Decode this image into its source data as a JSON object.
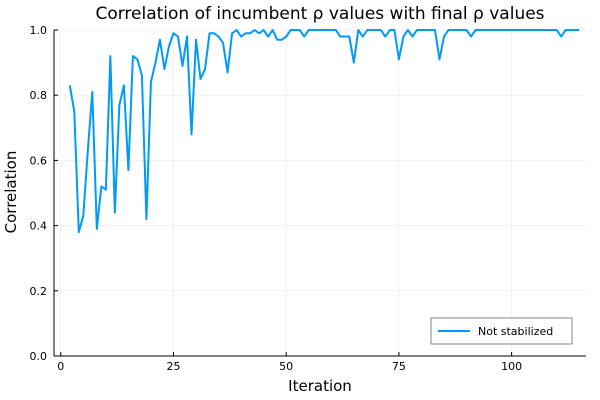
{
  "chart_data": {
    "type": "line",
    "title": "Correlation of incumbent ρ values with final ρ values",
    "xlabel": "Iteration",
    "ylabel": "Correlation",
    "xlim": [
      -1.5,
      116.5
    ],
    "ylim": [
      0,
      1.0
    ],
    "xticks": [
      0,
      25,
      50,
      75,
      100
    ],
    "xtick_labels": [
      "0",
      "25",
      "50",
      "75",
      "100"
    ],
    "yticks": [
      0.0,
      0.2,
      0.4,
      0.6,
      0.8,
      1.0
    ],
    "ytick_labels": [
      "0.0",
      "0.2",
      "0.4",
      "0.6",
      "0.8",
      "1.0"
    ],
    "grid": true,
    "legend_position": "bottom-right",
    "series_color": "#009af9",
    "series": [
      {
        "name": "Not stabilized",
        "x": [
          2,
          3,
          4,
          5,
          6,
          7,
          8,
          9,
          10,
          11,
          12,
          13,
          14,
          15,
          16,
          17,
          18,
          19,
          20,
          21,
          22,
          23,
          24,
          25,
          26,
          27,
          28,
          29,
          30,
          31,
          32,
          33,
          34,
          35,
          36,
          37,
          38,
          39,
          40,
          41,
          42,
          43,
          44,
          45,
          46,
          47,
          48,
          49,
          50,
          51,
          52,
          53,
          54,
          55,
          56,
          57,
          58,
          59,
          60,
          61,
          62,
          63,
          64,
          65,
          66,
          67,
          68,
          69,
          70,
          71,
          72,
          73,
          74,
          75,
          76,
          77,
          78,
          79,
          80,
          81,
          82,
          83,
          84,
          85,
          86,
          87,
          88,
          89,
          90,
          91,
          92,
          93,
          94,
          95,
          96,
          97,
          98,
          99,
          100,
          101,
          102,
          103,
          104,
          105,
          106,
          107,
          108,
          109,
          110,
          111,
          112,
          113,
          114,
          115
        ],
        "y": [
          0.83,
          0.75,
          0.38,
          0.43,
          0.63,
          0.81,
          0.39,
          0.52,
          0.51,
          0.92,
          0.44,
          0.77,
          0.83,
          0.57,
          0.92,
          0.91,
          0.86,
          0.42,
          0.84,
          0.9,
          0.97,
          0.88,
          0.95,
          0.99,
          0.98,
          0.89,
          0.98,
          0.68,
          0.97,
          0.85,
          0.88,
          0.99,
          0.99,
          0.98,
          0.96,
          0.87,
          0.99,
          1.0,
          0.98,
          0.99,
          0.99,
          1.0,
          0.99,
          1.0,
          0.98,
          1.0,
          0.97,
          0.97,
          0.98,
          1.0,
          1.0,
          1.0,
          0.98,
          1.0,
          1.0,
          1.0,
          1.0,
          1.0,
          1.0,
          1.0,
          0.98,
          0.98,
          0.98,
          0.9,
          1.0,
          0.98,
          1.0,
          1.0,
          1.0,
          1.0,
          0.98,
          1.0,
          1.0,
          0.91,
          0.98,
          1.0,
          0.98,
          1.0,
          1.0,
          1.0,
          1.0,
          1.0,
          0.91,
          0.98,
          1.0,
          1.0,
          1.0,
          1.0,
          1.0,
          0.98,
          1.0,
          1.0,
          1.0,
          1.0,
          1.0,
          1.0,
          1.0,
          1.0,
          1.0,
          1.0,
          1.0,
          1.0,
          1.0,
          1.0,
          1.0,
          1.0,
          1.0,
          1.0,
          1.0,
          0.98,
          1.0,
          1.0,
          1.0,
          1.0
        ]
      }
    ]
  }
}
